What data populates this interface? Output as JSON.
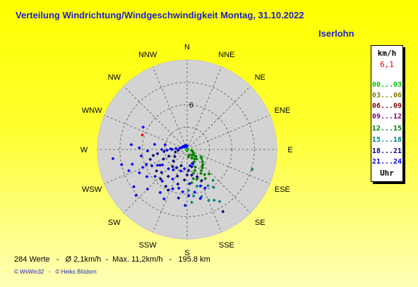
{
  "header": {
    "title": "Verteilung Windrichtung/Windgeschwindigkeit  Montag, 31.10.2022",
    "location": "Iserlohn"
  },
  "legend": {
    "unit": "km/h",
    "max_value": "6,1",
    "ranges": [
      {
        "label": "00...03",
        "color": "#00c000"
      },
      {
        "label": "03...06",
        "color": "#808000"
      },
      {
        "label": "06...09",
        "color": "#800000"
      },
      {
        "label": "09...12",
        "color": "#800080"
      },
      {
        "label": "12...15",
        "color": "#008000"
      },
      {
        "label": "15...18",
        "color": "#008080"
      },
      {
        "label": "18...21",
        "color": "#000080"
      },
      {
        "label": "21...24",
        "color": "#0000ff"
      }
    ],
    "footer_label": "Uhr"
  },
  "stats": {
    "text": "284 Werte   -   Ø 2,1km/h  -  Max. 11,2km/h   -   195.8 km"
  },
  "footer": {
    "text": "© WsWin32   -   © Heiko Blödorn"
  },
  "chart_data": {
    "type": "scatter",
    "projection": "polar",
    "angle_unit": "degrees (0 = N, clockwise)",
    "radius_unit": "km/h",
    "r_max": 12,
    "rings": [
      3,
      6,
      9,
      12
    ],
    "ring_label": "6",
    "directions": [
      "N",
      "NNE",
      "NE",
      "ENE",
      "E",
      "ESE",
      "SE",
      "SSE",
      "S",
      "SSW",
      "SW",
      "WSW",
      "W",
      "WNW",
      "NW",
      "NNW"
    ],
    "series": [
      {
        "color": "#00c000",
        "points": [
          [
            0,
            0.1
          ],
          [
            45,
            0.1
          ],
          [
            180,
            0.2
          ]
        ]
      },
      {
        "color": "#008000",
        "points": [
          [
            118,
            2.1
          ],
          [
            122,
            2.3
          ],
          [
            128,
            2.6
          ],
          [
            133,
            2.9
          ],
          [
            138,
            3.0
          ],
          [
            140,
            3.2
          ],
          [
            146,
            3.4
          ],
          [
            150,
            3.7
          ],
          [
            128,
            1.5
          ],
          [
            135,
            1.8
          ],
          [
            142,
            1.6
          ],
          [
            150,
            1.9
          ],
          [
            158,
            2.1
          ],
          [
            155,
            2.6
          ],
          [
            160,
            3.0
          ],
          [
            145,
            4.1
          ],
          [
            110,
            0.8
          ],
          [
            120,
            1.0
          ],
          [
            130,
            1.2
          ],
          [
            140,
            1.0
          ],
          [
            150,
            1.3
          ],
          [
            100,
            0.6
          ],
          [
            160,
            0.8
          ],
          [
            170,
            1.0
          ],
          [
            165,
            3.3
          ],
          [
            168,
            4.0
          ],
          [
            172,
            4.5
          ],
          [
            162,
            4.2
          ],
          [
            148,
            4.6
          ],
          [
            138,
            4.4
          ]
        ]
      },
      {
        "color": "#008080",
        "points": [
          [
            107,
            9.1
          ],
          [
            148,
            8.2
          ],
          [
            152,
            7.7
          ],
          [
            157,
            7.4
          ],
          [
            163,
            6.6
          ],
          [
            172,
            6.3
          ],
          [
            175,
            7.1
          ],
          [
            145,
            6.2
          ],
          [
            140,
            5.4
          ],
          [
            150,
            5.6
          ],
          [
            165,
            5.1
          ],
          [
            178,
            5.5
          ]
        ]
      },
      {
        "color": "#000080",
        "points": [
          [
            150,
            9.6
          ],
          [
            255,
            5.1
          ],
          [
            260,
            4.6
          ],
          [
            262,
            4.0
          ],
          [
            265,
            3.1
          ],
          [
            270,
            2.0
          ],
          [
            248,
            3.4
          ],
          [
            240,
            4.2
          ],
          [
            235,
            5.0
          ],
          [
            228,
            4.6
          ],
          [
            222,
            5.3
          ],
          [
            215,
            4.4
          ],
          [
            210,
            5.7
          ],
          [
            205,
            6.0
          ],
          [
            200,
            3.8
          ],
          [
            195,
            4.8
          ],
          [
            190,
            6.6
          ],
          [
            185,
            4.1
          ],
          [
            180,
            3.4
          ],
          [
            176,
            2.8
          ],
          [
            170,
            3.5
          ],
          [
            165,
            2.4
          ],
          [
            160,
            3.9
          ],
          [
            155,
            4.6
          ],
          [
            200,
            2.3
          ],
          [
            210,
            2.8
          ],
          [
            220,
            3.0
          ],
          [
            230,
            2.4
          ],
          [
            240,
            1.9
          ],
          [
            250,
            2.6
          ],
          [
            258,
            1.6
          ],
          [
            265,
            1.2
          ]
        ]
      },
      {
        "color": "#0000ff",
        "points": [
          [
            297,
            6.6
          ],
          [
            263,
            10.0
          ],
          [
            257,
            9.0
          ],
          [
            250,
            8.3
          ],
          [
            244,
            7.1
          ],
          [
            236,
            6.5
          ],
          [
            235,
            8.7
          ],
          [
            228,
            9.2
          ],
          [
            270,
            3.4
          ],
          [
            268,
            2.7
          ],
          [
            272,
            2.2
          ],
          [
            275,
            1.5
          ],
          [
            279,
            4.4
          ],
          [
            282,
            3.0
          ],
          [
            250,
            5.8
          ],
          [
            245,
            5.2
          ],
          [
            238,
            3.9
          ],
          [
            225,
            7.5
          ],
          [
            218,
            5.4
          ],
          [
            212,
            6.8
          ],
          [
            205,
            7.3
          ],
          [
            200,
            5.6
          ],
          [
            192,
            5.3
          ],
          [
            186,
            5.7
          ],
          [
            182,
            7.5
          ],
          [
            178,
            6.2
          ],
          [
            170,
            5.8
          ],
          [
            165,
            6.8
          ],
          [
            160,
            5.2
          ],
          [
            155,
            5.7
          ],
          [
            275,
            7.5
          ],
          [
            272,
            6.4
          ],
          [
            268,
            5.3
          ],
          [
            262,
            6.2
          ],
          [
            255,
            7.6
          ],
          [
            248,
            6.4
          ],
          [
            242,
            4.5
          ],
          [
            230,
            5.6
          ],
          [
            224,
            3.6
          ],
          [
            214,
            3.3
          ],
          [
            206,
            4.4
          ],
          [
            196,
            3.0
          ],
          [
            188,
            2.6
          ],
          [
            176,
            4.6
          ],
          [
            170,
            2.2
          ],
          [
            160,
            2.0
          ],
          [
            280,
            1.0
          ],
          [
            290,
            0.8
          ],
          [
            300,
            0.7
          ],
          [
            310,
            0.5
          ],
          [
            320,
            0.6
          ],
          [
            330,
            0.5
          ],
          [
            340,
            0.6
          ],
          [
            350,
            0.4
          ],
          [
            358,
            0.5
          ]
        ]
      },
      {
        "color": "#e00000",
        "points": [
          [
            288,
            6.3
          ]
        ]
      }
    ]
  }
}
